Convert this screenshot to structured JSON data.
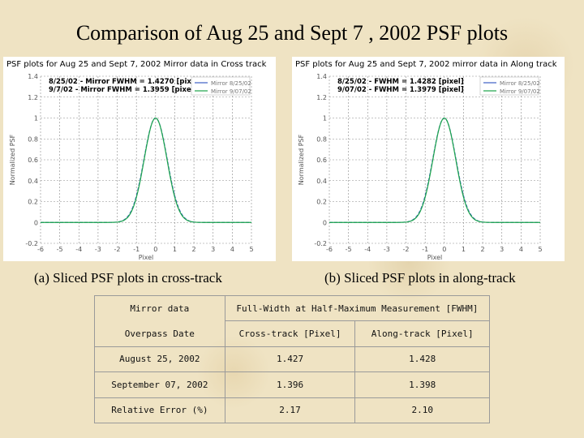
{
  "page": {
    "title": "Comparison of Aug 25 and Sept 7 , 2002 PSF plots",
    "caption_a": "(a) Sliced PSF plots in cross-track",
    "caption_b": "(b) Sliced PSF plots in along-track"
  },
  "colors": {
    "series_aug": "#3b5fc4",
    "series_sep": "#1aa34a"
  },
  "chart_data": [
    {
      "type": "line",
      "title": "PSF plots for Aug 25 and Sept 7, 2002 Mirror data in Cross track",
      "xlabel": "Pixel",
      "ylabel": "Normalized PSF",
      "xlim": [
        -6,
        5
      ],
      "ylim": [
        -0.2,
        1.4
      ],
      "xticks": [
        "-6",
        "-5",
        "-4",
        "-3",
        "-2",
        "-1",
        "0",
        "1",
        "2",
        "3",
        "4",
        "5"
      ],
      "yticks": [
        "-0.2",
        "0",
        "0.2",
        "0.4",
        "0.6",
        "0.8",
        "1",
        "1.2",
        "1.4"
      ],
      "annotations": [
        "8/25/02 - Mirror FWHM = 1.4270 [pixel]",
        "9/7/02 - Mirror FWHM = 1.3959 [pixel]"
      ],
      "legend": [
        "Mirror 8/25/02",
        "Mirror 9/07/02"
      ],
      "grid": true,
      "series": [
        {
          "name": "Mirror 8/25/02",
          "fwhm": 1.427,
          "center": 0,
          "peak": 1.0
        },
        {
          "name": "Mirror 9/07/02",
          "fwhm": 1.3959,
          "center": 0,
          "peak": 1.0
        }
      ]
    },
    {
      "type": "line",
      "title": "PSF plots for Aug 25 and Sept 7, 2002 mirror data in Along track",
      "xlabel": "Pixel",
      "ylabel": "Normalized PSF",
      "xlim": [
        -6,
        5
      ],
      "ylim": [
        -0.2,
        1.4
      ],
      "xticks": [
        "-6",
        "-5",
        "-4",
        "-3",
        "-2",
        "-1",
        "0",
        "1",
        "2",
        "3",
        "4",
        "5"
      ],
      "yticks": [
        "-0.2",
        "0",
        "0.2",
        "0.4",
        "0.6",
        "0.8",
        "1",
        "1.2",
        "1.4"
      ],
      "annotations": [
        "8/25/02 - FWHM = 1.4282 [pixel]",
        "9/07/02 - FWHM = 1.3979 [pixel]"
      ],
      "legend": [
        "Mirror 8/25/02",
        "Mirror 9/07/02"
      ],
      "grid": true,
      "series": [
        {
          "name": "Mirror 8/25/02",
          "fwhm": 1.4282,
          "center": 0,
          "peak": 1.0
        },
        {
          "name": "Mirror 9/07/02",
          "fwhm": 1.3979,
          "center": 0,
          "peak": 1.0
        }
      ]
    },
    {
      "type": "table",
      "headers": {
        "mirror_data": "Mirror data",
        "fwhm": "Full-Width at Half-Maximum Measurement [FWHM]",
        "overpass_date": "Overpass Date",
        "cross_track": "Cross-track [Pixel]",
        "along_track": "Along-track [Pixel]"
      },
      "rows": [
        {
          "label": "August 25, 2002",
          "cross": "1.427",
          "along": "1.428"
        },
        {
          "label": "September 07, 2002",
          "cross": "1.396",
          "along": "1.398"
        },
        {
          "label": "Relative Error (%)",
          "cross": "2.17",
          "along": "2.10"
        }
      ]
    }
  ]
}
